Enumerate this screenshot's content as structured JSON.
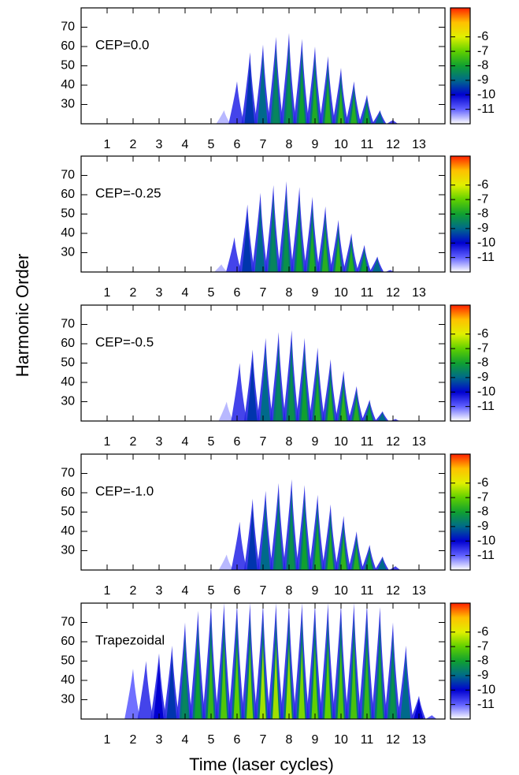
{
  "chart_data": [
    {
      "type": "heatmap",
      "annotation": "CEP=0.0",
      "ylabel": "Harmonic Order",
      "x": [
        5.5,
        6.0,
        6.5,
        7.0,
        7.5,
        8.0,
        8.5,
        9.0,
        9.5,
        10.0,
        10.5,
        11.0,
        11.5,
        12.0
      ],
      "values": [
        27,
        42,
        57,
        61,
        65,
        67,
        64,
        60,
        55,
        49,
        42,
        35,
        27,
        22
      ],
      "z": [
        -11.5,
        -10.5,
        -9.5,
        -9,
        -8.5,
        -8.3,
        -8,
        -7.8,
        -7.7,
        -7.6,
        -7.7,
        -8,
        -9,
        -10.5
      ],
      "xlim": [
        0,
        14
      ],
      "xticks": [
        1,
        2,
        3,
        4,
        5,
        6,
        7,
        8,
        9,
        10,
        11,
        12,
        13
      ],
      "ylim": [
        20,
        80
      ],
      "yticks": [
        30,
        40,
        50,
        60,
        70
      ],
      "clim": [
        -12,
        -4
      ],
      "cticks": [
        -6,
        -7,
        -8,
        -9,
        -10,
        -11
      ],
      "colormap": [
        "#ffffff",
        "#6060ff",
        "#0000d0",
        "#006a8a",
        "#10a030",
        "#60d000",
        "#e0f000",
        "#ffc000",
        "#ff2000"
      ]
    },
    {
      "type": "heatmap",
      "annotation": "CEP=-0.25",
      "x": [
        5.4,
        5.9,
        6.4,
        6.9,
        7.4,
        7.9,
        8.4,
        8.9,
        9.4,
        9.9,
        10.4,
        10.9,
        11.4,
        11.9
      ],
      "values": [
        24,
        38,
        55,
        61,
        65,
        67,
        64,
        59,
        54,
        47,
        40,
        34,
        28,
        21
      ],
      "z": [
        -11.5,
        -10.5,
        -9.5,
        -9,
        -8.5,
        -8.3,
        -8,
        -7.8,
        -7.7,
        -7.6,
        -7.7,
        -8,
        -9,
        -10.5
      ],
      "xlim": [
        0,
        14
      ],
      "xticks": [
        1,
        2,
        3,
        4,
        5,
        6,
        7,
        8,
        9,
        10,
        11,
        12,
        13
      ],
      "ylim": [
        20,
        80
      ],
      "yticks": [
        30,
        40,
        50,
        60,
        70
      ],
      "clim": [
        -12,
        -4
      ],
      "cticks": [
        -6,
        -7,
        -8,
        -9,
        -10,
        -11
      ],
      "colormap": [
        "#ffffff",
        "#6060ff",
        "#0000d0",
        "#006a8a",
        "#10a030",
        "#60d000",
        "#e0f000",
        "#ffc000",
        "#ff2000"
      ]
    },
    {
      "type": "heatmap",
      "annotation": "CEP=-0.5",
      "x": [
        5.6,
        6.1,
        6.6,
        7.1,
        7.6,
        8.1,
        8.6,
        9.1,
        9.6,
        10.1,
        10.6,
        11.1,
        11.6,
        12.1
      ],
      "values": [
        30,
        50,
        57,
        63,
        66,
        67,
        63,
        58,
        52,
        46,
        38,
        31,
        25,
        21
      ],
      "z": [
        -11.5,
        -10.5,
        -9.5,
        -9,
        -8.5,
        -8.3,
        -8,
        -7.8,
        -7.7,
        -7.6,
        -7.7,
        -8,
        -9,
        -10.5
      ],
      "xlim": [
        0,
        14
      ],
      "xticks": [
        1,
        2,
        3,
        4,
        5,
        6,
        7,
        8,
        9,
        10,
        11,
        12,
        13
      ],
      "ylim": [
        20,
        80
      ],
      "yticks": [
        30,
        40,
        50,
        60,
        70
      ],
      "clim": [
        -12,
        -4
      ],
      "cticks": [
        -6,
        -7,
        -8,
        -9,
        -10,
        -11
      ],
      "colormap": [
        "#ffffff",
        "#6060ff",
        "#0000d0",
        "#006a8a",
        "#10a030",
        "#60d000",
        "#e0f000",
        "#ffc000",
        "#ff2000"
      ]
    },
    {
      "type": "heatmap",
      "annotation": "CEP=-1.0",
      "x": [
        5.6,
        6.1,
        6.6,
        7.1,
        7.6,
        8.1,
        8.6,
        9.1,
        9.6,
        10.1,
        10.6,
        11.1,
        11.6,
        12.1
      ],
      "values": [
        28,
        45,
        57,
        61,
        65,
        67,
        64,
        59,
        54,
        48,
        40,
        33,
        27,
        22
      ],
      "z": [
        -11.5,
        -10.5,
        -9.5,
        -9,
        -8.5,
        -8.3,
        -8,
        -7.8,
        -7.7,
        -7.6,
        -7.7,
        -8,
        -9,
        -10.5
      ],
      "xlim": [
        0,
        14
      ],
      "xticks": [
        1,
        2,
        3,
        4,
        5,
        6,
        7,
        8,
        9,
        10,
        11,
        12,
        13
      ],
      "ylim": [
        20,
        80
      ],
      "yticks": [
        30,
        40,
        50,
        60,
        70
      ],
      "clim": [
        -12,
        -4
      ],
      "cticks": [
        -6,
        -7,
        -8,
        -9,
        -10,
        -11
      ],
      "colormap": [
        "#ffffff",
        "#6060ff",
        "#0000d0",
        "#006a8a",
        "#10a030",
        "#60d000",
        "#e0f000",
        "#ffc000",
        "#ff2000"
      ]
    },
    {
      "type": "heatmap",
      "annotation": "Trapezoidal",
      "xlabel": "Time (laser cycles)",
      "x": [
        2.0,
        2.5,
        3.0,
        3.5,
        4.0,
        4.5,
        5.0,
        5.5,
        6.0,
        6.5,
        7.0,
        7.5,
        8.0,
        8.5,
        9.0,
        9.5,
        10.0,
        10.5,
        11.0,
        11.5,
        12.0,
        12.5,
        13.0,
        13.5
      ],
      "values": [
        46,
        50,
        54,
        58,
        70,
        76,
        80,
        80,
        80,
        80,
        80,
        80,
        80,
        80,
        80,
        80,
        80,
        80,
        80,
        78,
        70,
        58,
        32,
        22
      ],
      "z": [
        -11,
        -10.5,
        -10,
        -9.5,
        -8.5,
        -8,
        -7.5,
        -7.2,
        -7,
        -6.8,
        -6.5,
        -6.5,
        -6.6,
        -6.8,
        -7,
        -7,
        -7.2,
        -7.3,
        -7.5,
        -7.8,
        -8.3,
        -9,
        -10,
        -10.8
      ],
      "xlim": [
        0,
        14
      ],
      "xticks": [
        1,
        2,
        3,
        4,
        5,
        6,
        7,
        8,
        9,
        10,
        11,
        12,
        13
      ],
      "ylim": [
        20,
        80
      ],
      "yticks": [
        30,
        40,
        50,
        60,
        70
      ],
      "clim": [
        -12,
        -4
      ],
      "cticks": [
        -6,
        -7,
        -8,
        -9,
        -10,
        -11
      ],
      "colormap": [
        "#ffffff",
        "#6060ff",
        "#0000d0",
        "#006a8a",
        "#10a030",
        "#60d000",
        "#e0f000",
        "#ffc000",
        "#ff2000"
      ]
    }
  ]
}
